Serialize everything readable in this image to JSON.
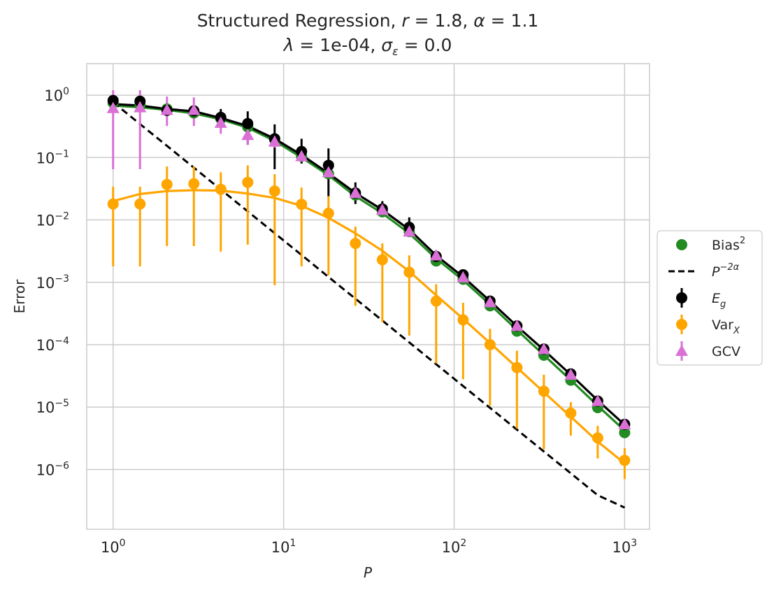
{
  "chart_data": {
    "type": "scatter",
    "xscale": "log",
    "yscale": "log",
    "title": {
      "line1_prefix": "Structured Regression, ",
      "r_symbol": "r",
      "r_value": " = 1.8, ",
      "alpha_symbol": "α",
      "alpha_value": " = 1.1",
      "lambda_symbol": "λ",
      "lambda_value": " = 1e-04, ",
      "sigma_symbol": "σ",
      "sigma_sub": "ε",
      "sigma_value": " = 0.0"
    },
    "xlabel": "P",
    "ylabel": "Error",
    "xlim": [
      0.7,
      1400
    ],
    "ylim": [
      1.1e-07,
      3.2
    ],
    "grid": true,
    "x_ticks": [
      {
        "value": 1,
        "base": "10",
        "exp": "0"
      },
      {
        "value": 10,
        "base": "10",
        "exp": "1"
      },
      {
        "value": 100,
        "base": "10",
        "exp": "2"
      },
      {
        "value": 1000,
        "base": "10",
        "exp": "3"
      }
    ],
    "y_ticks": [
      {
        "value": 1e-06,
        "base": "10",
        "exp": "−6"
      },
      {
        "value": 1e-05,
        "base": "10",
        "exp": "−5"
      },
      {
        "value": 0.0001,
        "base": "10",
        "exp": "−4"
      },
      {
        "value": 0.001,
        "base": "10",
        "exp": "−3"
      },
      {
        "value": 0.01,
        "base": "10",
        "exp": "−2"
      },
      {
        "value": 0.1,
        "base": "10",
        "exp": "−1"
      },
      {
        "value": 1,
        "base": "10",
        "exp": "0"
      }
    ],
    "x": [
      1.0,
      1.438,
      2.069,
      2.976,
      4.281,
      6.158,
      8.859,
      12.74,
      18.33,
      26.37,
      37.93,
      54.56,
      78.48,
      112.9,
      162.4,
      233.6,
      336.0,
      483.3,
      695.2,
      1000.0
    ],
    "series": [
      {
        "name": "Bias²",
        "kind": "scatter_with_theory",
        "color": "#228b22",
        "marker": "circle",
        "points": [
          0.75,
          0.7,
          0.6,
          0.52,
          0.42,
          0.31,
          0.195,
          0.105,
          0.055,
          0.025,
          0.0135,
          0.0065,
          0.0022,
          0.00112,
          0.00042,
          0.000165,
          6.8e-05,
          2.7e-05,
          9.8e-06,
          3.9e-06
        ],
        "theory": [
          0.68,
          0.64,
          0.58,
          0.51,
          0.41,
          0.3,
          0.185,
          0.1,
          0.052,
          0.024,
          0.0128,
          0.0061,
          0.0024,
          0.00108,
          0.00044,
          0.000172,
          6.8e-05,
          2.7e-05,
          1.05e-05,
          4.2e-06
        ]
      },
      {
        "name": "P^{-2α}",
        "kind": "reference_line",
        "color": "#000000",
        "dash": true,
        "theory": [
          0.77,
          0.344,
          0.154,
          0.0688,
          0.0307,
          0.0137,
          0.00613,
          0.00274,
          0.00122,
          0.000546,
          0.000244,
          0.000109,
          4.87e-05,
          2.17e-05,
          9.7e-06,
          4.34e-06,
          1.94e-06,
          8.66e-07,
          3.87e-07,
          2.45e-07
        ]
      },
      {
        "name": "E_g",
        "kind": "errorbar_with_theory",
        "color": "#000000",
        "marker": "circle",
        "points": [
          0.82,
          0.8,
          0.57,
          0.56,
          0.44,
          0.35,
          0.2,
          0.125,
          0.075,
          0.027,
          0.015,
          0.0076,
          0.0026,
          0.00132,
          0.0005,
          0.0002,
          8.5e-05,
          3.4e-05,
          1.25e-05,
          5.3e-06
        ],
        "err_low": [
          0.7,
          0.7,
          0.48,
          0.48,
          0.32,
          0.16,
          0.065,
          0.08,
          0.024,
          0.018,
          0.012,
          0.0055,
          0.0022,
          0.0011,
          0.00042,
          0.00017,
          7.2e-05,
          2.9e-05,
          1.07e-05,
          4.5e-06
        ],
        "err_high": [
          0.95,
          0.95,
          0.68,
          0.68,
          0.6,
          0.55,
          0.34,
          0.2,
          0.14,
          0.04,
          0.02,
          0.011,
          0.0031,
          0.00155,
          0.00058,
          0.000235,
          9.8e-05,
          4e-05,
          1.45e-05,
          6.2e-06
        ],
        "theory": [
          0.72,
          0.68,
          0.6,
          0.55,
          0.43,
          0.32,
          0.2,
          0.11,
          0.056,
          0.027,
          0.0145,
          0.007,
          0.0027,
          0.00122,
          0.0005,
          0.000198,
          8.2e-05,
          3.3e-05,
          1.28e-05,
          5.2e-06
        ]
      },
      {
        "name": "Var_X",
        "kind": "errorbar_with_theory",
        "color": "#ffa500",
        "marker": "circle",
        "points": [
          0.018,
          0.018,
          0.037,
          0.038,
          0.031,
          0.04,
          0.029,
          0.0178,
          0.0128,
          0.0042,
          0.0023,
          0.00145,
          0.0005,
          0.00025,
          0.0001,
          4.3e-05,
          1.8e-05,
          8e-06,
          3.2e-06,
          1.4e-06
        ],
        "err_low": [
          0.0018,
          0.0018,
          0.0038,
          0.0038,
          0.0031,
          0.004,
          0.0009,
          0.0018,
          0.0013,
          0.00042,
          0.00023,
          0.00014,
          5e-05,
          2.8e-05,
          1.05e-05,
          4.5e-06,
          2.1e-06,
          3.5e-06,
          1.5e-06,
          7e-07
        ],
        "err_high": [
          0.034,
          0.034,
          0.072,
          0.072,
          0.058,
          0.075,
          0.054,
          0.033,
          0.024,
          0.0078,
          0.0042,
          0.0027,
          0.00093,
          0.00047,
          0.00018,
          8e-05,
          3.3e-05,
          1.2e-05,
          5e-06,
          2.2e-06
        ],
        "theory": [
          0.02,
          0.026,
          0.029,
          0.03,
          0.0295,
          0.0265,
          0.0225,
          0.0168,
          0.0108,
          0.0061,
          0.0032,
          0.0015,
          0.00062,
          0.00026,
          0.000106,
          4.3e-05,
          1.73e-05,
          7e-06,
          2.8e-06,
          1.25e-06
        ]
      },
      {
        "name": "GCV",
        "kind": "errorbar",
        "color": "#da70d6",
        "marker": "triangle",
        "points": [
          0.62,
          0.64,
          0.58,
          0.58,
          0.36,
          0.23,
          0.18,
          0.105,
          0.058,
          0.027,
          0.0145,
          0.0065,
          0.0027,
          0.0012,
          0.00048,
          0.0002,
          8.5e-05,
          3.3e-05,
          1.25e-05,
          5.3e-06
        ],
        "err_low": [
          0.065,
          0.065,
          0.32,
          0.32,
          0.24,
          0.16,
          0.145,
          0.085,
          0.048,
          0.022,
          0.012,
          0.0055,
          0.0023,
          0.00103,
          0.00042,
          0.000175,
          7.4e-05,
          2.9e-05,
          1.1e-05,
          4.7e-06
        ],
        "err_high": [
          1.2,
          1.2,
          0.95,
          0.92,
          0.52,
          0.3,
          0.215,
          0.125,
          0.069,
          0.032,
          0.017,
          0.0076,
          0.0031,
          0.00138,
          0.00054,
          0.000225,
          9.6e-05,
          3.7e-05,
          1.4e-05,
          5.9e-06
        ]
      }
    ],
    "legend": {
      "placement": "right-center",
      "entries": [
        {
          "key": "bias",
          "label": "Bias",
          "sup": "2",
          "sub": ""
        },
        {
          "key": "ref",
          "label": "P",
          "sup": "−2α",
          "sub": ""
        },
        {
          "key": "eg",
          "label": "E",
          "sup": "",
          "sub": "g"
        },
        {
          "key": "var",
          "label": "Var",
          "sup": "",
          "sub": "X"
        },
        {
          "key": "gcv",
          "label": "GCV",
          "sup": "",
          "sub": ""
        }
      ]
    }
  }
}
